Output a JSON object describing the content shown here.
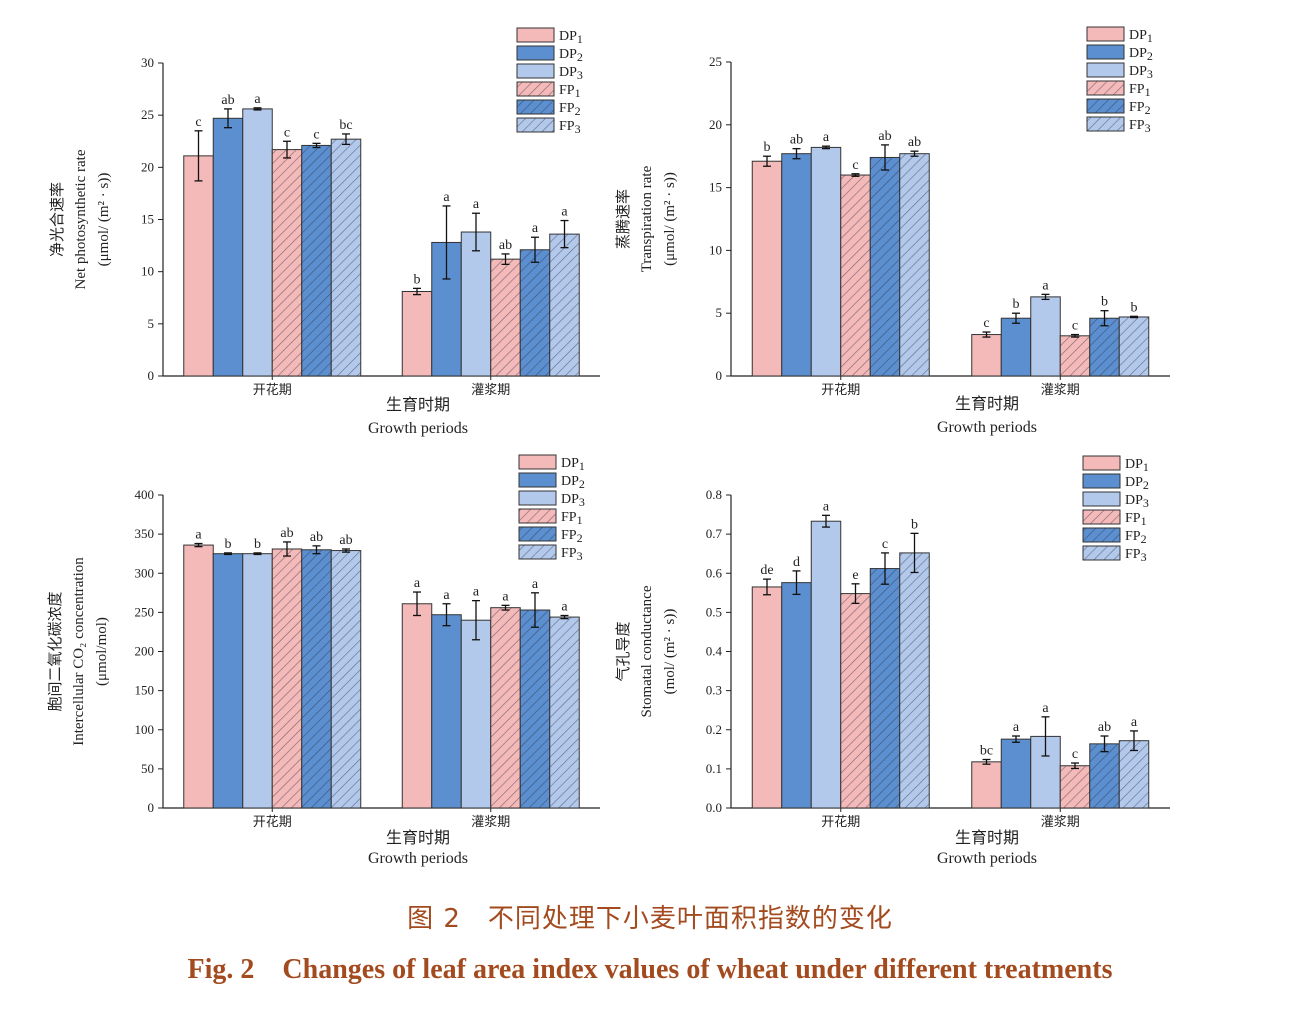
{
  "colors": {
    "DP1": "#f4b9b9",
    "DP2": "#5b8fcf",
    "DP3": "#b3c9ec",
    "FP1": "#f4b9b9",
    "FP2": "#5b8fcf",
    "FP3": "#b3c9ec",
    "caption": "#a34a1e"
  },
  "caption": {
    "cn": "图 2　不同处理下小麦叶面积指数的变化",
    "en": "Fig. 2　Changes of leaf area index values of wheat under different treatments"
  },
  "chart_data": [
    {
      "type": "bar",
      "categories": [
        "开花期",
        "灌浆期"
      ],
      "xlabel_cn": "生育时期",
      "xlabel_en": "Growth periods",
      "ylabel_cn": "净光合速率",
      "ylabel_en": "Net photosynthetic rate",
      "ylabel_unit": "(μmol/ (m² · s))",
      "ylim": [
        0,
        30
      ],
      "yticks": [
        0,
        5,
        10,
        15,
        20,
        25,
        30
      ],
      "legend_position": "top-right",
      "series": [
        {
          "name": "DP1",
          "values": [
            21.1,
            8.1
          ],
          "errors": [
            2.4,
            0.3
          ],
          "letters": [
            "c",
            "b"
          ],
          "hatch": false
        },
        {
          "name": "DP2",
          "values": [
            24.7,
            12.8
          ],
          "errors": [
            0.9,
            3.5
          ],
          "letters": [
            "ab",
            "a"
          ],
          "hatch": false
        },
        {
          "name": "DP3",
          "values": [
            25.6,
            13.8
          ],
          "errors": [
            0.1,
            1.8
          ],
          "letters": [
            "a",
            "a"
          ],
          "hatch": false
        },
        {
          "name": "FP1",
          "values": [
            21.7,
            11.2
          ],
          "errors": [
            0.8,
            0.5
          ],
          "letters": [
            "c",
            "ab"
          ],
          "hatch": true
        },
        {
          "name": "FP2",
          "values": [
            22.1,
            12.1
          ],
          "errors": [
            0.2,
            1.2
          ],
          "letters": [
            "c",
            "a"
          ],
          "hatch": true
        },
        {
          "name": "FP3",
          "values": [
            22.7,
            13.6
          ],
          "errors": [
            0.5,
            1.3
          ],
          "letters": [
            "bc",
            "a"
          ],
          "hatch": true
        }
      ]
    },
    {
      "type": "bar",
      "categories": [
        "开花期",
        "灌浆期"
      ],
      "xlabel_cn": "生育时期",
      "xlabel_en": "Growth periods",
      "ylabel_cn": "蒸腾速率",
      "ylabel_en": "Transpiration rate",
      "ylabel_unit": "(μmol/ (m² · s))",
      "ylim": [
        0,
        25
      ],
      "yticks": [
        0,
        5,
        10,
        15,
        20,
        25
      ],
      "legend_position": "top-right",
      "series": [
        {
          "name": "DP1",
          "values": [
            17.1,
            3.3
          ],
          "errors": [
            0.4,
            0.2
          ],
          "letters": [
            "b",
            "c"
          ],
          "hatch": false
        },
        {
          "name": "DP2",
          "values": [
            17.7,
            4.6
          ],
          "errors": [
            0.4,
            0.4
          ],
          "letters": [
            "ab",
            "b"
          ],
          "hatch": false
        },
        {
          "name": "DP3",
          "values": [
            18.2,
            6.3
          ],
          "errors": [
            0.1,
            0.2
          ],
          "letters": [
            "a",
            "a"
          ],
          "hatch": false
        },
        {
          "name": "FP1",
          "values": [
            16.0,
            3.2
          ],
          "errors": [
            0.1,
            0.1
          ],
          "letters": [
            "c",
            "c"
          ],
          "hatch": true
        },
        {
          "name": "FP2",
          "values": [
            17.4,
            4.6
          ],
          "errors": [
            1.0,
            0.6
          ],
          "letters": [
            "ab",
            "b"
          ],
          "hatch": true
        },
        {
          "name": "FP3",
          "values": [
            17.7,
            4.7
          ],
          "errors": [
            0.2,
            0.05
          ],
          "letters": [
            "ab",
            "b"
          ],
          "hatch": true
        }
      ]
    },
    {
      "type": "bar",
      "categories": [
        "开花期",
        "灌浆期"
      ],
      "xlabel_cn": "生育时期",
      "xlabel_en": "Growth periods",
      "ylabel_cn": "胞间二氧化碳浓度",
      "ylabel_en": "Intercellular CO₂ concentration",
      "ylabel_unit": "(μmol/mol)",
      "ylim": [
        0,
        400
      ],
      "yticks": [
        0,
        50,
        100,
        150,
        200,
        250,
        300,
        350,
        400
      ],
      "legend_position": "top-right",
      "series": [
        {
          "name": "DP1",
          "values": [
            336,
            261
          ],
          "errors": [
            2,
            15
          ],
          "letters": [
            "a",
            "a"
          ],
          "hatch": false
        },
        {
          "name": "DP2",
          "values": [
            325,
            247
          ],
          "errors": [
            1,
            14
          ],
          "letters": [
            "b",
            "a"
          ],
          "hatch": false
        },
        {
          "name": "DP3",
          "values": [
            325,
            240
          ],
          "errors": [
            1,
            25
          ],
          "letters": [
            "b",
            "a"
          ],
          "hatch": false
        },
        {
          "name": "FP1",
          "values": [
            331,
            256
          ],
          "errors": [
            9,
            3
          ],
          "letters": [
            "ab",
            "a"
          ],
          "hatch": true
        },
        {
          "name": "FP2",
          "values": [
            330,
            253
          ],
          "errors": [
            5,
            22
          ],
          "letters": [
            "ab",
            "a"
          ],
          "hatch": true
        },
        {
          "name": "FP3",
          "values": [
            329,
            244
          ],
          "errors": [
            2,
            2
          ],
          "letters": [
            "ab",
            "a"
          ],
          "hatch": true
        }
      ]
    },
    {
      "type": "bar",
      "categories": [
        "开花期",
        "灌浆期"
      ],
      "xlabel_cn": "生育时期",
      "xlabel_en": "Growth periods",
      "ylabel_cn": "气孔导度",
      "ylabel_en": "Stomatal conductance",
      "ylabel_unit": "(mol/ (m² · s))",
      "ylim": [
        0,
        0.8
      ],
      "yticks": [
        0.0,
        0.1,
        0.2,
        0.3,
        0.4,
        0.5,
        0.6,
        0.7,
        0.8
      ],
      "legend_position": "top-right",
      "series": [
        {
          "name": "DP1",
          "values": [
            0.565,
            0.118
          ],
          "errors": [
            0.02,
            0.006
          ],
          "letters": [
            "de",
            "bc"
          ],
          "hatch": false
        },
        {
          "name": "DP2",
          "values": [
            0.576,
            0.176
          ],
          "errors": [
            0.03,
            0.008
          ],
          "letters": [
            "d",
            "a"
          ],
          "hatch": false
        },
        {
          "name": "DP3",
          "values": [
            0.733,
            0.183
          ],
          "errors": [
            0.015,
            0.05
          ],
          "letters": [
            "a",
            "a"
          ],
          "hatch": false
        },
        {
          "name": "FP1",
          "values": [
            0.548,
            0.108
          ],
          "errors": [
            0.025,
            0.007
          ],
          "letters": [
            "e",
            "c"
          ],
          "hatch": true
        },
        {
          "name": "FP2",
          "values": [
            0.612,
            0.164
          ],
          "errors": [
            0.04,
            0.02
          ],
          "letters": [
            "c",
            "ab"
          ],
          "hatch": true
        },
        {
          "name": "FP3",
          "values": [
            0.652,
            0.172
          ],
          "errors": [
            0.05,
            0.025
          ],
          "letters": [
            "b",
            "a"
          ],
          "hatch": true
        }
      ]
    }
  ]
}
